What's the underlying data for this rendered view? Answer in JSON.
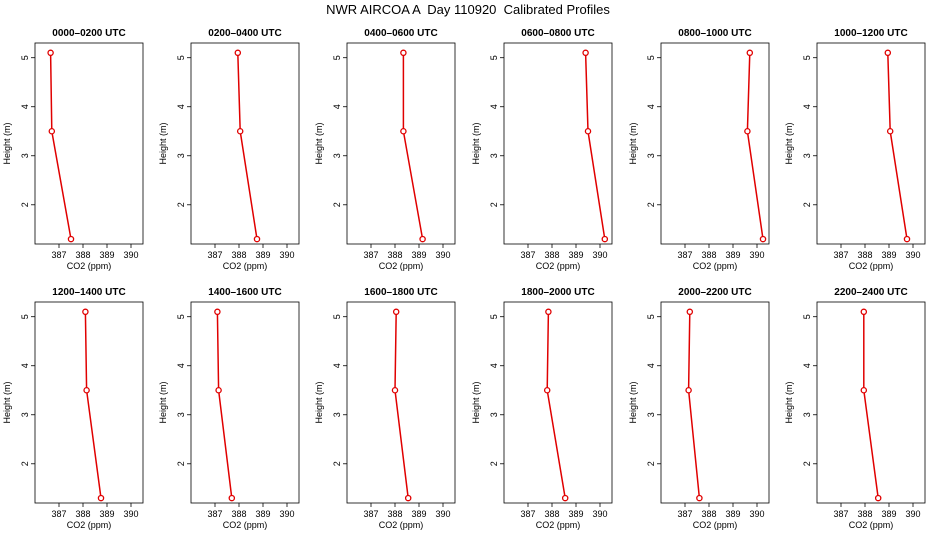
{
  "title": "NWR AIRCOA A  Day 110920  Calibrated Profiles",
  "colors": {
    "series": "#e00000",
    "axis": "#000000"
  },
  "chart_data": [
    {
      "type": "line",
      "title": "0000–0200 UTC",
      "xlabel": "CO2 (ppm)",
      "ylabel": "Height (m)",
      "xlim": [
        386,
        390.5
      ],
      "ylim": [
        1.2,
        5.3
      ],
      "xticks": [
        387,
        388,
        389,
        390
      ],
      "yticks": [
        2,
        3,
        4,
        5
      ],
      "series": [
        {
          "x": [
            386.65,
            386.7,
            387.5
          ],
          "y": [
            5.1,
            3.5,
            1.3
          ]
        }
      ]
    },
    {
      "type": "line",
      "title": "0200–0400 UTC",
      "xlabel": "CO2 (ppm)",
      "ylabel": "Height (m)",
      "xlim": [
        386,
        390.5
      ],
      "ylim": [
        1.2,
        5.3
      ],
      "xticks": [
        387,
        388,
        389,
        390
      ],
      "yticks": [
        2,
        3,
        4,
        5
      ],
      "series": [
        {
          "x": [
            387.95,
            388.05,
            388.75
          ],
          "y": [
            5.1,
            3.5,
            1.3
          ]
        }
      ]
    },
    {
      "type": "line",
      "title": "0400–0600 UTC",
      "xlabel": "CO2 (ppm)",
      "ylabel": "Height (m)",
      "xlim": [
        386,
        390.5
      ],
      "ylim": [
        1.2,
        5.3
      ],
      "xticks": [
        387,
        388,
        389,
        390
      ],
      "yticks": [
        2,
        3,
        4,
        5
      ],
      "series": [
        {
          "x": [
            388.35,
            388.35,
            389.15
          ],
          "y": [
            5.1,
            3.5,
            1.3
          ]
        }
      ]
    },
    {
      "type": "line",
      "title": "0600–0800 UTC",
      "xlabel": "CO2 (ppm)",
      "ylabel": "Height (m)",
      "xlim": [
        386,
        390.5
      ],
      "ylim": [
        1.2,
        5.3
      ],
      "xticks": [
        387,
        388,
        389,
        390
      ],
      "yticks": [
        2,
        3,
        4,
        5
      ],
      "series": [
        {
          "x": [
            389.4,
            389.5,
            390.2
          ],
          "y": [
            5.1,
            3.5,
            1.3
          ]
        }
      ]
    },
    {
      "type": "line",
      "title": "0800–1000 UTC",
      "xlabel": "CO2 (ppm)",
      "ylabel": "Height (m)",
      "xlim": [
        386,
        390.5
      ],
      "ylim": [
        1.2,
        5.3
      ],
      "xticks": [
        387,
        388,
        389,
        390
      ],
      "yticks": [
        2,
        3,
        4,
        5
      ],
      "series": [
        {
          "x": [
            389.7,
            389.6,
            390.25
          ],
          "y": [
            5.1,
            3.5,
            1.3
          ]
        }
      ]
    },
    {
      "type": "line",
      "title": "1000–1200 UTC",
      "xlabel": "CO2 (ppm)",
      "ylabel": "Height (m)",
      "xlim": [
        386,
        390.5
      ],
      "ylim": [
        1.2,
        5.3
      ],
      "xticks": [
        387,
        388,
        389,
        390
      ],
      "yticks": [
        2,
        3,
        4,
        5
      ],
      "series": [
        {
          "x": [
            388.95,
            389.05,
            389.75
          ],
          "y": [
            5.1,
            3.5,
            1.3
          ]
        }
      ]
    },
    {
      "type": "line",
      "title": "1200–1400 UTC",
      "xlabel": "CO2 (ppm)",
      "ylabel": "Height (m)",
      "xlim": [
        386,
        390.5
      ],
      "ylim": [
        1.2,
        5.3
      ],
      "xticks": [
        387,
        388,
        389,
        390
      ],
      "yticks": [
        2,
        3,
        4,
        5
      ],
      "series": [
        {
          "x": [
            388.1,
            388.15,
            388.75
          ],
          "y": [
            5.1,
            3.5,
            1.3
          ]
        }
      ]
    },
    {
      "type": "line",
      "title": "1400–1600 UTC",
      "xlabel": "CO2 (ppm)",
      "ylabel": "Height (m)",
      "xlim": [
        386,
        390.5
      ],
      "ylim": [
        1.2,
        5.3
      ],
      "xticks": [
        387,
        388,
        389,
        390
      ],
      "yticks": [
        2,
        3,
        4,
        5
      ],
      "series": [
        {
          "x": [
            387.1,
            387.15,
            387.7
          ],
          "y": [
            5.1,
            3.5,
            1.3
          ]
        }
      ]
    },
    {
      "type": "line",
      "title": "1600–1800 UTC",
      "xlabel": "CO2 (ppm)",
      "ylabel": "Height (m)",
      "xlim": [
        386,
        390.5
      ],
      "ylim": [
        1.2,
        5.3
      ],
      "xticks": [
        387,
        388,
        389,
        390
      ],
      "yticks": [
        2,
        3,
        4,
        5
      ],
      "series": [
        {
          "x": [
            388.05,
            388.0,
            388.55
          ],
          "y": [
            5.1,
            3.5,
            1.3
          ]
        }
      ]
    },
    {
      "type": "line",
      "title": "1800–2000 UTC",
      "xlabel": "CO2 (ppm)",
      "ylabel": "Height (m)",
      "xlim": [
        386,
        390.5
      ],
      "ylim": [
        1.2,
        5.3
      ],
      "xticks": [
        387,
        388,
        389,
        390
      ],
      "yticks": [
        2,
        3,
        4,
        5
      ],
      "series": [
        {
          "x": [
            387.85,
            387.8,
            388.55
          ],
          "y": [
            5.1,
            3.5,
            1.3
          ]
        }
      ]
    },
    {
      "type": "line",
      "title": "2000–2200 UTC",
      "xlabel": "CO2 (ppm)",
      "ylabel": "Height (m)",
      "xlim": [
        386,
        390.5
      ],
      "ylim": [
        1.2,
        5.3
      ],
      "xticks": [
        387,
        388,
        389,
        390
      ],
      "yticks": [
        2,
        3,
        4,
        5
      ],
      "series": [
        {
          "x": [
            387.2,
            387.15,
            387.6
          ],
          "y": [
            5.1,
            3.5,
            1.3
          ]
        }
      ]
    },
    {
      "type": "line",
      "title": "2200–2400 UTC",
      "xlabel": "CO2 (ppm)",
      "ylabel": "Height (m)",
      "xlim": [
        386,
        390.5
      ],
      "ylim": [
        1.2,
        5.3
      ],
      "xticks": [
        387,
        388,
        389,
        390
      ],
      "yticks": [
        2,
        3,
        4,
        5
      ],
      "series": [
        {
          "x": [
            387.95,
            387.95,
            388.55
          ],
          "y": [
            5.1,
            3.5,
            1.3
          ]
        }
      ]
    }
  ]
}
